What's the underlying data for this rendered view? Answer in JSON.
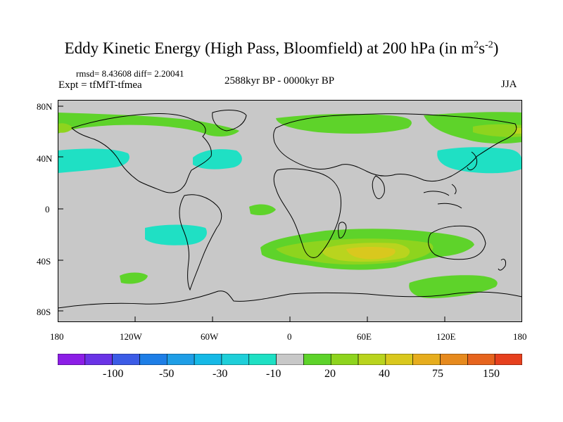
{
  "title": {
    "main": "Eddy Kinetic Energy (High Pass, Bloomfield) at 200 hPa (in m",
    "sup1": "2",
    "mid": "s",
    "sup2": "-2",
    "close": ")"
  },
  "stats": "rmsd= 8.43608 diff= 2.20041",
  "experiment": "Expt = tfMfT-tfmea",
  "period": "2588kyr BP - 0000kyr BP",
  "season": "JJA",
  "lat_ticks": [
    "80N",
    "40N",
    "0",
    "40S",
    "80S"
  ],
  "lon_ticks": [
    "180",
    "120W",
    "60W",
    "0",
    "60E",
    "120E",
    "180"
  ],
  "colorbar": {
    "colors": [
      "#8c1ee6",
      "#6a33e6",
      "#3c5ce6",
      "#1e7ee6",
      "#1f9ee6",
      "#16b9e6",
      "#1fcfd9",
      "#1fe0c4",
      "#c8c8c8",
      "#5ed32a",
      "#8ed41e",
      "#b9d41e",
      "#d9c81e",
      "#e6ad1e",
      "#e68a1e",
      "#e6641e",
      "#e6401e"
    ],
    "labels": [
      "-100",
      "-50",
      "-30",
      "-10",
      "20",
      "40",
      "75",
      "150"
    ]
  },
  "colors": {
    "background": "#c8c8c8",
    "coast": "#000000",
    "cyan": "#1fe0c4",
    "green": "#5ed32a",
    "lightgreen": "#8ed41e",
    "yellowgreen": "#b9d41e",
    "yellow": "#d9c81e"
  }
}
